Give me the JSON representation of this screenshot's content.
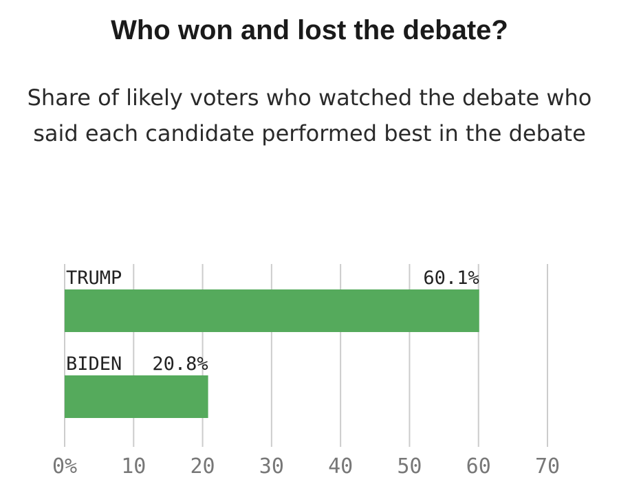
{
  "title": "Who won and lost the debate?",
  "subtitle": "Share of likely voters who watched the debate who said each candidate performed best in the debate",
  "colors": {
    "bar": "#55aa5c",
    "grid": "#cccccc",
    "tick_text": "#777777",
    "label_text": "#222222"
  },
  "chart_data": {
    "type": "bar",
    "orientation": "horizontal",
    "title": "Who won and lost the debate?",
    "subtitle": "Share of likely voters who watched the debate who said each candidate performed best in the debate",
    "categories": [
      "TRUMP",
      "BIDEN"
    ],
    "values": [
      60.1,
      20.8
    ],
    "value_labels": [
      "60.1%",
      "20.8%"
    ],
    "xlim": [
      0,
      70
    ],
    "x_ticks": [
      0,
      10,
      20,
      30,
      40,
      50,
      60,
      70
    ],
    "x_tick_labels": [
      "0%",
      "10",
      "20",
      "30",
      "40",
      "50",
      "60",
      "70"
    ],
    "grid": true
  }
}
